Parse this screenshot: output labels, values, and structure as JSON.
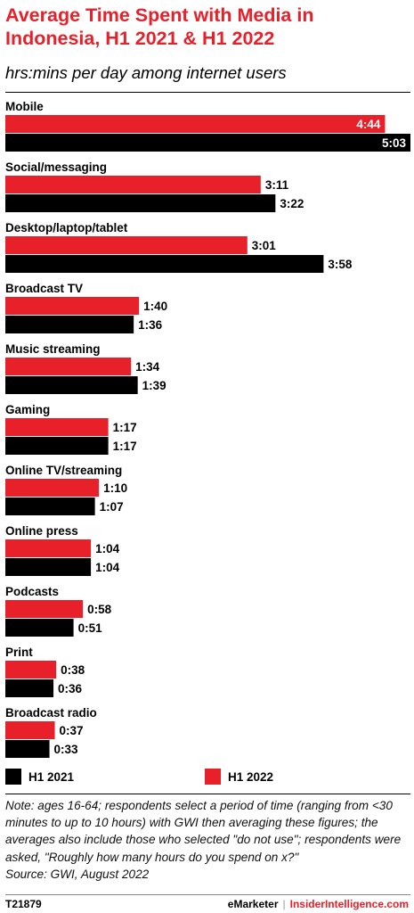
{
  "header": {
    "title": "Average Time Spent with Media in Indonesia, H1 2021 & H1 2022",
    "subtitle": "hrs:mins per day among internet users"
  },
  "colors": {
    "h1_2022": "#e8202a",
    "h1_2021": "#000000",
    "label_on_bar": "#ffffff"
  },
  "chart_data": {
    "type": "bar",
    "orientation": "horizontal",
    "unit": "hrs:mins",
    "categories": [
      "Mobile",
      "Social/messaging",
      "Desktop/laptop/tablet",
      "Broadcast TV",
      "Music streaming",
      "Gaming",
      "Online TV/streaming",
      "Online press",
      "Podcasts",
      "Print",
      "Broadcast radio"
    ],
    "series": [
      {
        "name": "H1 2022",
        "color": "#e8202a",
        "values": [
          284,
          191,
          181,
          100,
          94,
          77,
          70,
          64,
          58,
          38,
          37
        ],
        "labels": [
          "4:44",
          "3:11",
          "3:01",
          "1:40",
          "1:34",
          "1:17",
          "1:10",
          "1:04",
          "0:58",
          "0:38",
          "0:37"
        ]
      },
      {
        "name": "H1 2021",
        "color": "#000000",
        "values": [
          303,
          202,
          238,
          96,
          99,
          77,
          67,
          64,
          51,
          36,
          33
        ],
        "labels": [
          "5:03",
          "3:22",
          "3:58",
          "1:36",
          "1:39",
          "1:17",
          "1:07",
          "1:04",
          "0:51",
          "0:36",
          "0:33"
        ]
      }
    ],
    "xlim": [
      0,
      303
    ],
    "grid": false,
    "legend_position": "bottom"
  },
  "legend": {
    "items": [
      {
        "label": "H1 2021",
        "color": "#000000"
      },
      {
        "label": "H1 2022",
        "color": "#e8202a"
      }
    ]
  },
  "footnote": {
    "note": "Note: ages 16-64; respondents select a period of time (ranging from <30 minutes to up to 10 hours) with GWI then averaging these figures; the averages also include those who selected \"do not use\"; respondents were asked, \"Roughly how many hours do you spend on x?\"",
    "source": "Source:  GWI, August 2022"
  },
  "footer": {
    "chart_id": "T21879",
    "brand_primary": "eMarketer",
    "brand_secondary": "InsiderIntelligence.com"
  }
}
